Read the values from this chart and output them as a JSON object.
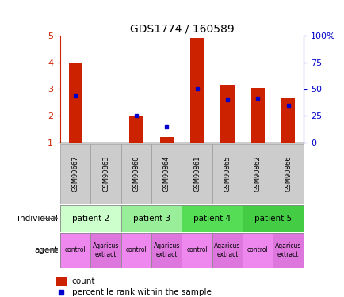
{
  "title": "GDS1774 / 160589",
  "samples": [
    "GSM90667",
    "GSM90863",
    "GSM90860",
    "GSM90864",
    "GSM90861",
    "GSM90865",
    "GSM90862",
    "GSM90866"
  ],
  "count_values": [
    4.0,
    1.0,
    2.0,
    1.2,
    4.9,
    3.15,
    3.05,
    2.65
  ],
  "percentile_values": [
    2.75,
    null,
    2.0,
    1.6,
    3.0,
    2.6,
    2.65,
    2.4
  ],
  "ylim": [
    1,
    5
  ],
  "y_ticks_left": [
    1,
    2,
    3,
    4,
    5
  ],
  "y_ticks_right_vals": [
    0,
    25,
    50,
    75,
    100
  ],
  "y_ticks_right_labels": [
    "0",
    "25",
    "50",
    "75",
    "100%"
  ],
  "bar_color": "#cc2200",
  "dot_color": "#0000cc",
  "individuals": [
    {
      "label": "patient 2",
      "span": [
        0,
        2
      ],
      "color": "#ccffcc"
    },
    {
      "label": "patient 3",
      "span": [
        2,
        4
      ],
      "color": "#99ee99"
    },
    {
      "label": "patient 4",
      "span": [
        4,
        6
      ],
      "color": "#55dd55"
    },
    {
      "label": "patient 5",
      "span": [
        6,
        8
      ],
      "color": "#44cc44"
    }
  ],
  "agents": [
    {
      "label": "control",
      "span": [
        0,
        1
      ],
      "color": "#ee88ee"
    },
    {
      "label": "Agaricus\nextract",
      "span": [
        1,
        2
      ],
      "color": "#dd77dd"
    },
    {
      "label": "control",
      "span": [
        2,
        3
      ],
      "color": "#ee88ee"
    },
    {
      "label": "Agaricus\nextract",
      "span": [
        3,
        4
      ],
      "color": "#dd77dd"
    },
    {
      "label": "control",
      "span": [
        4,
        5
      ],
      "color": "#ee88ee"
    },
    {
      "label": "Agaricus\nextract",
      "span": [
        5,
        6
      ],
      "color": "#dd77dd"
    },
    {
      "label": "control",
      "span": [
        6,
        7
      ],
      "color": "#ee88ee"
    },
    {
      "label": "Agaricus\nextract",
      "span": [
        7,
        8
      ],
      "color": "#dd77dd"
    }
  ],
  "legend_count_color": "#cc2200",
  "legend_dot_color": "#0000cc",
  "left_tick_color": "#cc2200",
  "right_tick_color": "#0000cc",
  "sample_row_colors": [
    "#cccccc",
    "#bbbbbb"
  ],
  "ind_row_border": "#888888",
  "agent_row_border": "#888888"
}
